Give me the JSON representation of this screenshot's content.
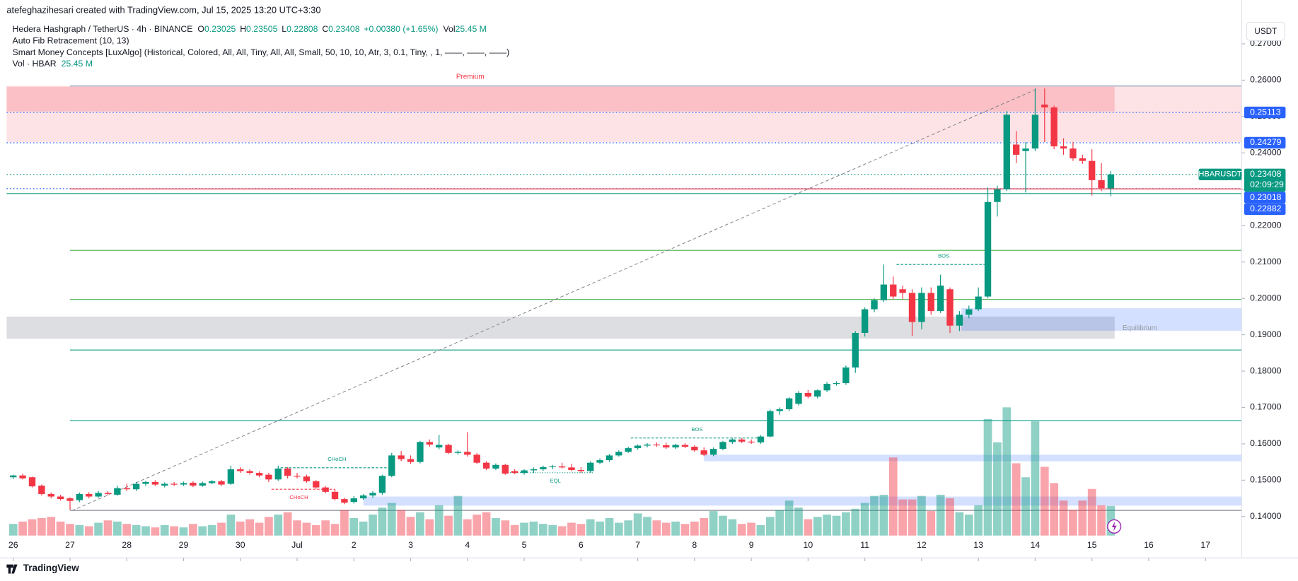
{
  "header": {
    "credit": "atefeghazihesari created with TradingView.com, Jul 15, 2025 13:20 UTC+3:30",
    "symbol": "Hedera Hashgraph / TetherUS · 4h · BINANCE",
    "o_label": "O",
    "o": "0.23025",
    "h_label": "H",
    "h": "0.23505",
    "l_label": "L",
    "l": "0.22808",
    "c_label": "C",
    "c": "0.23408",
    "change": "+0.00380 (+1.65%)",
    "vol_label": "Vol",
    "vol": "25.45 M",
    "indicator1": "Auto Fib Retracement (10, 13)",
    "indicator2": "Smart Money Concepts [LuxAlgo] (Historical, Colored, All, All, Tiny, All, All, Small, 50, 10, 10, Atr, 3, 0.1, Tiny, , 1, ——, ——, ——)",
    "indicator3": "Vol · HBAR",
    "indicator3_value": "25.45 M",
    "currency": "USDT",
    "logo": "TradingView"
  },
  "chart_data": {
    "type": "candlestick",
    "grid": false,
    "up_color": "#089981",
    "down_color": "#f23645",
    "volume_up_color": "rgba(8,153,129,0.45)",
    "volume_down_color": "rgba(242,54,69,0.45)",
    "xlim": [
      -0.7,
      129.83
    ],
    "xticks": [
      {
        "value": 0,
        "label": "26"
      },
      {
        "value": 6,
        "label": "27"
      },
      {
        "value": 12,
        "label": "28"
      },
      {
        "value": 18,
        "label": "29"
      },
      {
        "value": 24,
        "label": "30"
      },
      {
        "value": 30,
        "label": "Jul"
      },
      {
        "value": 36,
        "label": "2"
      },
      {
        "value": 42,
        "label": "3"
      },
      {
        "value": 48,
        "label": "4"
      },
      {
        "value": 54,
        "label": "5"
      },
      {
        "value": 60,
        "label": "6"
      },
      {
        "value": 66,
        "label": "7"
      },
      {
        "value": 72,
        "label": "8"
      },
      {
        "value": 78,
        "label": "9"
      },
      {
        "value": 84,
        "label": "10"
      },
      {
        "value": 90,
        "label": "11"
      },
      {
        "value": 96,
        "label": "12"
      },
      {
        "value": 102,
        "label": "13"
      },
      {
        "value": 108,
        "label": "14"
      },
      {
        "value": 114,
        "label": "15"
      },
      {
        "value": 120,
        "label": "16"
      },
      {
        "value": 126,
        "label": "17"
      }
    ],
    "ylim": [
      0.13091,
      0.27705
    ],
    "yticks": [
      {
        "value": 0.27,
        "label": "0.27000"
      },
      {
        "value": 0.26,
        "label": "0.26000"
      },
      {
        "value": 0.25,
        "label": "0.25000"
      },
      {
        "value": 0.24,
        "label": "0.24000"
      },
      {
        "value": 0.23,
        "label": "0.23000"
      },
      {
        "value": 0.22,
        "label": "0.22000"
      },
      {
        "value": 0.21,
        "label": "0.21000"
      },
      {
        "value": 0.2,
        "label": "0.20000"
      },
      {
        "value": 0.19,
        "label": "0.19000"
      },
      {
        "value": 0.18,
        "label": "0.18000"
      },
      {
        "value": 0.17,
        "label": "0.17000"
      },
      {
        "value": 0.16,
        "label": "0.16000"
      },
      {
        "value": 0.15,
        "label": "0.15000"
      },
      {
        "value": 0.14,
        "label": "0.14000"
      }
    ],
    "volume_lim": [
      0,
      200
    ],
    "ohlc": [
      [
        0.1508,
        0.1515,
        0.1503,
        0.1513
      ],
      [
        0.1513,
        0.1518,
        0.1502,
        0.1505
      ],
      [
        0.1508,
        0.151,
        0.148,
        0.1483
      ],
      [
        0.1485,
        0.1488,
        0.1458,
        0.1462
      ],
      [
        0.1462,
        0.1466,
        0.145,
        0.1455
      ],
      [
        0.1455,
        0.146,
        0.1444,
        0.1448
      ],
      [
        0.145,
        0.1453,
        0.1418,
        0.1443
      ],
      [
        0.1445,
        0.1466,
        0.144,
        0.1462
      ],
      [
        0.1462,
        0.1467,
        0.145,
        0.1455
      ],
      [
        0.1455,
        0.147,
        0.1452,
        0.1465
      ],
      [
        0.1465,
        0.147,
        0.1458,
        0.1462
      ],
      [
        0.146,
        0.1485,
        0.1457,
        0.1478
      ],
      [
        0.1478,
        0.149,
        0.147,
        0.1475
      ],
      [
        0.1475,
        0.1495,
        0.147,
        0.149
      ],
      [
        0.149,
        0.1498,
        0.1484,
        0.1495
      ],
      [
        0.1495,
        0.15,
        0.1484,
        0.1488
      ],
      [
        0.1485,
        0.1494,
        0.148,
        0.149
      ],
      [
        0.149,
        0.1495,
        0.1484,
        0.1488
      ],
      [
        0.1488,
        0.1496,
        0.1484,
        0.1492
      ],
      [
        0.1493,
        0.1497,
        0.1481,
        0.1485
      ],
      [
        0.1485,
        0.1496,
        0.1482,
        0.1492
      ],
      [
        0.1492,
        0.15,
        0.1489,
        0.1497
      ],
      [
        0.1497,
        0.1501,
        0.1484,
        0.1488
      ],
      [
        0.149,
        0.154,
        0.1487,
        0.153
      ],
      [
        0.153,
        0.1536,
        0.152,
        0.1525
      ],
      [
        0.1525,
        0.153,
        0.1515,
        0.152
      ],
      [
        0.152,
        0.1524,
        0.1508,
        0.1513
      ],
      [
        0.1515,
        0.152,
        0.1495,
        0.1502
      ],
      [
        0.1502,
        0.154,
        0.1498,
        0.1532
      ],
      [
        0.1532,
        0.1536,
        0.1505,
        0.1512
      ],
      [
        0.1512,
        0.152,
        0.1505,
        0.151
      ],
      [
        0.151,
        0.1515,
        0.1493,
        0.1497
      ],
      [
        0.1497,
        0.15,
        0.1476,
        0.148
      ],
      [
        0.148,
        0.1484,
        0.1464,
        0.1468
      ],
      [
        0.1468,
        0.1475,
        0.1444,
        0.1448
      ],
      [
        0.1448,
        0.1452,
        0.1434,
        0.1438
      ],
      [
        0.144,
        0.1456,
        0.1436,
        0.145
      ],
      [
        0.145,
        0.1462,
        0.1446,
        0.1458
      ],
      [
        0.1458,
        0.147,
        0.1452,
        0.1465
      ],
      [
        0.1465,
        0.1515,
        0.146,
        0.1512
      ],
      [
        0.1512,
        0.1575,
        0.1508,
        0.1568
      ],
      [
        0.1568,
        0.158,
        0.1552,
        0.1558
      ],
      [
        0.1558,
        0.1568,
        0.1545,
        0.155
      ],
      [
        0.155,
        0.1608,
        0.1546,
        0.1605
      ],
      [
        0.1605,
        0.1612,
        0.1592,
        0.1598
      ],
      [
        0.159,
        0.1625,
        0.1585,
        0.1597
      ],
      [
        0.1597,
        0.16,
        0.1572,
        0.1575
      ],
      [
        0.1575,
        0.1582,
        0.157,
        0.1578
      ],
      [
        0.1578,
        0.1632,
        0.1565,
        0.157
      ],
      [
        0.157,
        0.1575,
        0.1545,
        0.1548
      ],
      [
        0.1548,
        0.1552,
        0.1528,
        0.1532
      ],
      [
        0.1532,
        0.1546,
        0.1528,
        0.1542
      ],
      [
        0.1542,
        0.1545,
        0.1515,
        0.1518
      ],
      [
        0.1525,
        0.153,
        0.1516,
        0.152
      ],
      [
        0.152,
        0.153,
        0.1515,
        0.1527
      ],
      [
        0.1527,
        0.1535,
        0.152,
        0.153
      ],
      [
        0.153,
        0.154,
        0.1526,
        0.1536
      ],
      [
        0.1536,
        0.1542,
        0.153,
        0.1538
      ],
      [
        0.1538,
        0.1548,
        0.1532,
        0.1535
      ],
      [
        0.1535,
        0.1545,
        0.1525,
        0.1528
      ],
      [
        0.1528,
        0.1536,
        0.152,
        0.1525
      ],
      [
        0.1525,
        0.1552,
        0.152,
        0.1548
      ],
      [
        0.1548,
        0.156,
        0.1544,
        0.1555
      ],
      [
        0.1555,
        0.1572,
        0.155,
        0.1568
      ],
      [
        0.1568,
        0.1582,
        0.1565,
        0.1578
      ],
      [
        0.1578,
        0.1592,
        0.1575,
        0.1588
      ],
      [
        0.1588,
        0.1598,
        0.1584,
        0.1595
      ],
      [
        0.1595,
        0.1602,
        0.159,
        0.1598
      ],
      [
        0.1598,
        0.1604,
        0.1592,
        0.1596
      ],
      [
        0.1596,
        0.1603,
        0.1586,
        0.159
      ],
      [
        0.159,
        0.16,
        0.1586,
        0.1597
      ],
      [
        0.1597,
        0.1602,
        0.1588,
        0.1592
      ],
      [
        0.1592,
        0.1596,
        0.1578,
        0.1582
      ],
      [
        0.1582,
        0.159,
        0.1566,
        0.157
      ],
      [
        0.157,
        0.159,
        0.1566,
        0.1586
      ],
      [
        0.1586,
        0.1608,
        0.1582,
        0.1605
      ],
      [
        0.1605,
        0.1615,
        0.16,
        0.1612
      ],
      [
        0.1612,
        0.1616,
        0.1602,
        0.1606
      ],
      [
        0.1606,
        0.1612,
        0.16,
        0.1604
      ],
      [
        0.1604,
        0.1624,
        0.16,
        0.162
      ],
      [
        0.162,
        0.1694,
        0.1618,
        0.169
      ],
      [
        0.169,
        0.17,
        0.168,
        0.1695
      ],
      [
        0.1695,
        0.1728,
        0.169,
        0.1725
      ],
      [
        0.171,
        0.1745,
        0.1705,
        0.174
      ],
      [
        0.174,
        0.1748,
        0.1725,
        0.173
      ],
      [
        0.173,
        0.175,
        0.1725,
        0.1747
      ],
      [
        0.1747,
        0.177,
        0.1742,
        0.1765
      ],
      [
        0.1765,
        0.1772,
        0.176,
        0.1767
      ],
      [
        0.1767,
        0.1815,
        0.1762,
        0.181
      ],
      [
        0.181,
        0.191,
        0.1795,
        0.1905
      ],
      [
        0.1905,
        0.1975,
        0.1895,
        0.197
      ],
      [
        0.197,
        0.2,
        0.1962,
        0.1995
      ],
      [
        0.1995,
        0.2093,
        0.199,
        0.2038
      ],
      [
        0.2038,
        0.206,
        0.1998,
        0.2005
      ],
      [
        0.2025,
        0.2035,
        0.1998,
        0.2015
      ],
      [
        0.2015,
        0.2025,
        0.1897,
        0.1935
      ],
      [
        0.1935,
        0.203,
        0.1915,
        0.2015
      ],
      [
        0.2015,
        0.203,
        0.1955,
        0.1965
      ],
      [
        0.1965,
        0.2065,
        0.196,
        0.2035
      ],
      [
        0.2025,
        0.203,
        0.1905,
        0.1925
      ],
      [
        0.1925,
        0.1965,
        0.191,
        0.1955
      ],
      [
        0.1955,
        0.198,
        0.1945,
        0.197
      ],
      [
        0.197,
        0.203,
        0.1965,
        0.2005
      ],
      [
        0.2005,
        0.2305,
        0.2,
        0.2265
      ],
      [
        0.2265,
        0.231,
        0.2225,
        0.23
      ],
      [
        0.23,
        0.2515,
        0.2295,
        0.2505
      ],
      [
        0.2423,
        0.246,
        0.2372,
        0.2395
      ],
      [
        0.2405,
        0.243,
        0.2291,
        0.2412
      ],
      [
        0.2412,
        0.2577,
        0.2405,
        0.2505
      ],
      [
        0.2533,
        0.2577,
        0.243,
        0.2525
      ],
      [
        0.2525,
        0.253,
        0.241,
        0.2418
      ],
      [
        0.2418,
        0.244,
        0.2395,
        0.2412
      ],
      [
        0.2412,
        0.243,
        0.2378,
        0.2385
      ],
      [
        0.2385,
        0.2395,
        0.237,
        0.2378
      ],
      [
        0.2378,
        0.241,
        0.2283,
        0.2325
      ],
      [
        0.2325,
        0.2372,
        0.2295,
        0.2303
      ],
      [
        0.23025,
        0.23505,
        0.22808,
        0.23408
      ]
    ],
    "volume": [
      10,
      12,
      14,
      15,
      16,
      12,
      10,
      9,
      8,
      11,
      13,
      12,
      10,
      9,
      8,
      7,
      9,
      8,
      7,
      10,
      8,
      9,
      11,
      18,
      12,
      14,
      11,
      16,
      18,
      20,
      13,
      11,
      9,
      13,
      10,
      22,
      15,
      12,
      18,
      24,
      28,
      22,
      16,
      20,
      14,
      26,
      17,
      34,
      14,
      18,
      20,
      15,
      13,
      9,
      11,
      12,
      10,
      9,
      8,
      11,
      10,
      14,
      12,
      15,
      11,
      13,
      19,
      16,
      13,
      11,
      12,
      10,
      12,
      15,
      21,
      17,
      14,
      10,
      11,
      9,
      16,
      22,
      30,
      24,
      14,
      16,
      18,
      17,
      20,
      23,
      28,
      34,
      35,
      67,
      31,
      31,
      34,
      21,
      35,
      32,
      20,
      18,
      26,
      100,
      80,
      110,
      62,
      50,
      98,
      59,
      45,
      30,
      22,
      30,
      40,
      26,
      25.45
    ],
    "zones": [
      {
        "from": 0.2584,
        "to": 0.243,
        "start": -0.7,
        "end": 129.83,
        "color": "rgba(242,54,69,0.14)"
      },
      {
        "from": 0.2582,
        "to": 0.2514,
        "start": -0.7,
        "end": 116.4,
        "color": "rgba(242,54,69,0.2)"
      },
      {
        "from": 0.195,
        "to": 0.1889,
        "start": -0.7,
        "end": 116.4,
        "color": "rgba(120,123,134,0.25)"
      },
      {
        "from": 0.1973,
        "to": 0.1911,
        "start": 100.2,
        "end": 129.83,
        "color": "rgba(41,98,255,0.2)"
      },
      {
        "from": 0.157,
        "to": 0.1552,
        "start": 73,
        "end": 129.83,
        "color": "rgba(41,98,255,0.2)"
      },
      {
        "from": 0.1455,
        "to": 0.143,
        "start": 37,
        "end": 129.83,
        "color": "rgba(41,98,255,0.2)"
      }
    ],
    "levels": [
      {
        "value": 0.2584,
        "start": 6,
        "color": "#7e95b5",
        "style": "solid"
      },
      {
        "value": 0.25113,
        "start": -0.7,
        "color": "#2962ff",
        "style": "dotted"
      },
      {
        "value": 0.24279,
        "start": -0.7,
        "color": "#2962ff",
        "style": "dotted"
      },
      {
        "value": 0.23408,
        "start": -0.7,
        "color": "#089981",
        "style": "dotted"
      },
      {
        "value": 0.23018,
        "start": -0.7,
        "color": "#2962ff",
        "style": "dotted"
      },
      {
        "value": 0.2301,
        "start": 6,
        "color": "#f23645",
        "style": "solid"
      },
      {
        "value": 0.22882,
        "start": -0.7,
        "color": "#089981",
        "style": "solid"
      },
      {
        "value": 0.2132,
        "start": 6,
        "color": "#4caf50",
        "style": "solid"
      },
      {
        "value": 0.1997,
        "start": 6,
        "color": "#4caf50",
        "style": "solid"
      },
      {
        "value": 0.1858,
        "start": 6,
        "color": "#089981",
        "style": "solid"
      },
      {
        "value": 0.1664,
        "start": 6,
        "color": "#26a69a",
        "style": "solid"
      },
      {
        "value": 0.1417,
        "start": 6,
        "color": "#787b86",
        "style": "solid"
      }
    ],
    "price_labels": [
      {
        "value": 0.25113,
        "color": "#2962ff"
      },
      {
        "value": 0.24279,
        "color": "#2962ff"
      },
      {
        "value": 0.23018,
        "color": "#2962ff"
      },
      {
        "value": 0.22882,
        "color": "#2962ff"
      }
    ],
    "last_price": {
      "symbol": "HBARUSDT",
      "value": 0.23408,
      "countdown": "02:09:29",
      "color": "#089981"
    },
    "annotations": [
      "Premium",
      "Equilibrium",
      "BOS",
      "BOS",
      "CHoCH",
      "CHoCH",
      "EQL"
    ]
  }
}
